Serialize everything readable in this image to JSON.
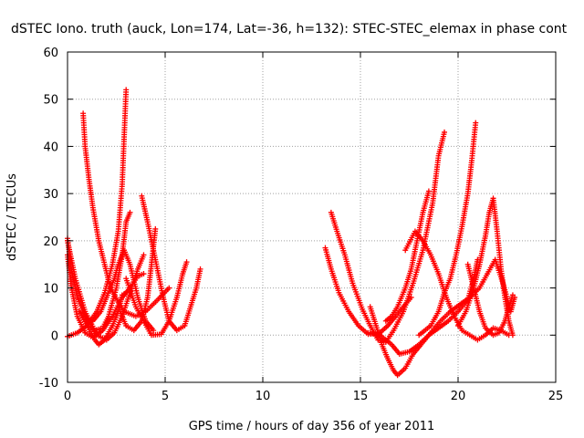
{
  "chart_data": {
    "type": "scatter",
    "title": "dSTEC Iono. truth (auck, Lon=174, Lat=-36, h=132): STEC-STEC_elemax in phase cont",
    "xlabel": "GPS time / hours of day 356 of year 2011",
    "ylabel": "dSTEC  / TECUs",
    "xlim": [
      0,
      25
    ],
    "ylim": [
      -10,
      60
    ],
    "x_ticks": [
      "0",
      "5",
      "10",
      "15",
      "20",
      "25"
    ],
    "y_ticks": [
      "-10",
      "0",
      "10",
      "20",
      "30",
      "40",
      "50",
      "60"
    ],
    "grid": true,
    "marker": "+",
    "color": "#ff0000",
    "series": [
      {
        "points": [
          [
            0.0,
            17
          ],
          [
            0.2,
            10
          ],
          [
            0.5,
            4
          ],
          [
            0.9,
            0.5
          ],
          [
            1.3,
            -0.5
          ],
          [
            1.8,
            1
          ],
          [
            2.3,
            4
          ],
          [
            2.8,
            8
          ],
          [
            3.2,
            10
          ],
          [
            3.6,
            12.5
          ],
          [
            3.9,
            13
          ]
        ]
      },
      {
        "points": [
          [
            0.0,
            20.5
          ],
          [
            0.2,
            14
          ],
          [
            0.5,
            8
          ],
          [
            1.0,
            3
          ],
          [
            1.5,
            0
          ],
          [
            2.0,
            -1
          ],
          [
            2.4,
            0.5
          ],
          [
            2.8,
            4
          ],
          [
            3.2,
            9
          ],
          [
            3.6,
            14
          ],
          [
            3.9,
            17
          ]
        ]
      },
      {
        "points": [
          [
            0.0,
            20
          ],
          [
            0.4,
            12
          ],
          [
            0.9,
            5
          ],
          [
            1.4,
            1
          ],
          [
            1.8,
            1.5
          ],
          [
            2.1,
            4
          ],
          [
            2.5,
            10
          ],
          [
            2.8,
            17
          ],
          [
            3.0,
            24
          ],
          [
            3.2,
            26
          ]
        ]
      },
      {
        "points": [
          [
            0.0,
            -0.3
          ],
          [
            0.5,
            0.5
          ],
          [
            1.0,
            2
          ],
          [
            1.5,
            5
          ],
          [
            1.9,
            9
          ],
          [
            2.3,
            15
          ],
          [
            2.6,
            22
          ],
          [
            2.8,
            32
          ],
          [
            2.9,
            42
          ],
          [
            3.0,
            52
          ]
        ]
      },
      {
        "points": [
          [
            0.8,
            47
          ],
          [
            0.9,
            40
          ],
          [
            1.1,
            33
          ],
          [
            1.3,
            27
          ],
          [
            1.6,
            20
          ],
          [
            1.9,
            15
          ],
          [
            2.2,
            10
          ],
          [
            2.6,
            7
          ],
          [
            2.9,
            5
          ],
          [
            3.2,
            4.5
          ],
          [
            3.5,
            4
          ],
          [
            4.0,
            5
          ],
          [
            4.5,
            7
          ],
          [
            5.2,
            10
          ]
        ]
      },
      {
        "points": [
          [
            0.6,
            5
          ],
          [
            1.0,
            2
          ],
          [
            1.4,
            -1
          ],
          [
            1.6,
            -2
          ],
          [
            1.9,
            -1
          ],
          [
            2.3,
            2
          ],
          [
            2.6,
            5
          ],
          [
            2.8,
            8.5
          ],
          [
            3.0,
            9
          ]
        ]
      },
      {
        "points": [
          [
            1.3,
            3
          ],
          [
            1.7,
            5
          ],
          [
            2.0,
            8
          ],
          [
            2.4,
            12
          ],
          [
            2.6,
            15
          ],
          [
            2.9,
            18
          ],
          [
            3.2,
            15
          ],
          [
            3.6,
            8
          ],
          [
            4.0,
            3
          ],
          [
            4.4,
            1
          ]
        ]
      },
      {
        "points": [
          [
            2.7,
            5
          ],
          [
            3.0,
            2
          ],
          [
            3.4,
            1
          ],
          [
            3.8,
            3
          ],
          [
            4.1,
            8
          ],
          [
            4.3,
            15
          ],
          [
            4.5,
            22.5
          ]
        ]
      },
      {
        "points": [
          [
            3.8,
            29.5
          ],
          [
            4.1,
            24
          ],
          [
            4.5,
            16
          ],
          [
            4.9,
            8
          ],
          [
            5.2,
            3
          ],
          [
            5.6,
            1
          ],
          [
            6.0,
            2
          ],
          [
            6.3,
            6
          ],
          [
            6.6,
            10
          ],
          [
            6.8,
            14
          ]
        ]
      },
      {
        "points": [
          [
            3.0,
            12
          ],
          [
            3.5,
            6
          ],
          [
            3.9,
            3
          ],
          [
            4.3,
            0
          ],
          [
            4.8,
            0.2
          ],
          [
            5.2,
            3
          ],
          [
            5.6,
            8
          ],
          [
            5.9,
            13
          ],
          [
            6.1,
            15.5
          ]
        ]
      },
      {
        "points": [
          [
            13.2,
            18.5
          ],
          [
            13.5,
            14
          ],
          [
            13.9,
            9
          ],
          [
            14.4,
            5
          ],
          [
            14.9,
            2
          ],
          [
            15.4,
            0.2
          ],
          [
            16.0,
            0.5
          ],
          [
            16.4,
            2
          ],
          [
            16.8,
            4
          ],
          [
            17.3,
            6.5
          ],
          [
            17.6,
            8
          ]
        ]
      },
      {
        "points": [
          [
            13.5,
            26
          ],
          [
            13.8,
            22
          ],
          [
            14.2,
            17
          ],
          [
            14.6,
            11
          ],
          [
            15.1,
            5.5
          ],
          [
            15.5,
            2
          ],
          [
            15.9,
            -1
          ],
          [
            16.3,
            -1.5
          ],
          [
            16.7,
            1
          ],
          [
            17.2,
            5
          ],
          [
            17.7,
            11
          ],
          [
            18.2,
            18
          ],
          [
            18.7,
            28
          ],
          [
            19.0,
            38
          ],
          [
            19.3,
            43
          ]
        ]
      },
      {
        "points": [
          [
            15.5,
            6
          ],
          [
            15.8,
            2
          ],
          [
            16.1,
            -2
          ],
          [
            16.4,
            -5
          ],
          [
            16.7,
            -7.5
          ],
          [
            16.9,
            -8.5
          ],
          [
            17.3,
            -7
          ],
          [
            17.7,
            -4
          ],
          [
            18.1,
            -2
          ],
          [
            18.6,
            0.5
          ],
          [
            19.1,
            3
          ],
          [
            19.6,
            5
          ],
          [
            20.1,
            6.5
          ],
          [
            20.6,
            8
          ],
          [
            21.1,
            10
          ],
          [
            21.5,
            13
          ],
          [
            21.9,
            16
          ],
          [
            22.3,
            11
          ],
          [
            22.7,
            5
          ],
          [
            22.9,
            8
          ]
        ]
      },
      {
        "points": [
          [
            16.3,
            3
          ],
          [
            16.6,
            4
          ],
          [
            16.9,
            6
          ],
          [
            17.3,
            10
          ],
          [
            17.6,
            14
          ],
          [
            17.9,
            20
          ],
          [
            18.2,
            26
          ],
          [
            18.5,
            30.5
          ]
        ]
      },
      {
        "points": [
          [
            15.4,
            0.5
          ],
          [
            16.0,
            0
          ],
          [
            16.6,
            -2
          ],
          [
            17.0,
            -4
          ],
          [
            17.5,
            -3.5
          ],
          [
            18.0,
            -2
          ],
          [
            18.5,
            0
          ],
          [
            19.0,
            1.5
          ],
          [
            19.5,
            3
          ],
          [
            20.0,
            5
          ],
          [
            20.5,
            7.5
          ],
          [
            20.8,
            12
          ],
          [
            21.0,
            16
          ]
        ]
      },
      {
        "points": [
          [
            18.0,
            0
          ],
          [
            18.6,
            2
          ],
          [
            19.0,
            5
          ],
          [
            19.3,
            9
          ],
          [
            19.6,
            12
          ],
          [
            19.9,
            17
          ],
          [
            20.2,
            23
          ],
          [
            20.5,
            30
          ],
          [
            20.7,
            37
          ],
          [
            20.9,
            45
          ]
        ]
      },
      {
        "points": [
          [
            17.3,
            18
          ],
          [
            17.8,
            22
          ],
          [
            18.2,
            20
          ],
          [
            18.6,
            17
          ],
          [
            19.0,
            13
          ],
          [
            19.4,
            8
          ],
          [
            19.8,
            4
          ],
          [
            20.2,
            1
          ],
          [
            20.6,
            0
          ],
          [
            21.0,
            -1
          ],
          [
            21.4,
            0
          ],
          [
            21.8,
            1.5
          ],
          [
            22.2,
            1
          ],
          [
            22.6,
            0
          ]
        ]
      },
      {
        "points": [
          [
            20.0,
            2
          ],
          [
            20.4,
            5
          ],
          [
            20.8,
            10
          ],
          [
            21.1,
            15
          ],
          [
            21.4,
            21
          ],
          [
            21.6,
            26
          ],
          [
            21.8,
            29
          ],
          [
            22.0,
            22
          ],
          [
            22.2,
            14
          ],
          [
            22.4,
            8
          ],
          [
            22.6,
            3
          ],
          [
            22.8,
            0
          ]
        ]
      },
      {
        "points": [
          [
            20.5,
            15
          ],
          [
            20.8,
            10
          ],
          [
            21.1,
            5
          ],
          [
            21.4,
            1.5
          ],
          [
            21.8,
            0
          ],
          [
            22.1,
            0.5
          ],
          [
            22.4,
            3
          ],
          [
            22.6,
            6
          ],
          [
            22.8,
            8.5
          ]
        ]
      }
    ]
  }
}
